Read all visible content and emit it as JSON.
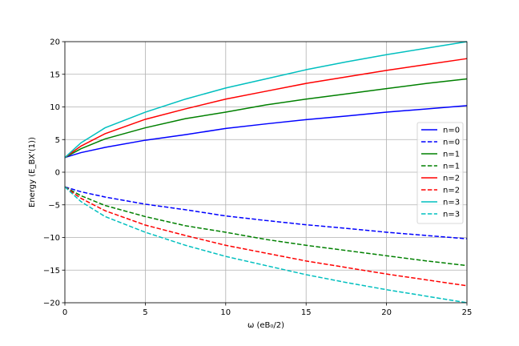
{
  "chart_data": {
    "type": "line",
    "title": "",
    "xlabel": "ω (eB₀/2)",
    "ylabel": "Energy (E_BX'(1))",
    "xlim": [
      0,
      25
    ],
    "ylim": [
      -20,
      20
    ],
    "xticks": [
      0,
      5,
      10,
      15,
      20,
      25
    ],
    "yticks": [
      -20,
      -15,
      -10,
      -5,
      0,
      5,
      10,
      15,
      20
    ],
    "grid": true,
    "legend_position": "right",
    "x": [
      0,
      1,
      2.5,
      5,
      7.5,
      10,
      12.5,
      15,
      17.5,
      20,
      22.5,
      25
    ],
    "series": [
      {
        "name": "n=0",
        "color": "#0000ff",
        "style": "solid",
        "values": [
          2.25,
          3.0,
          3.8,
          4.9,
          5.75,
          6.7,
          7.4,
          8.05,
          8.6,
          9.2,
          9.7,
          10.2
        ]
      },
      {
        "name": "n=0",
        "color": "#0000ff",
        "style": "dashed",
        "values": [
          -2.25,
          -3.0,
          -3.8,
          -4.9,
          -5.75,
          -6.7,
          -7.4,
          -8.05,
          -8.6,
          -9.2,
          -9.7,
          -10.2
        ]
      },
      {
        "name": "n=1",
        "color": "#008000",
        "style": "solid",
        "values": [
          2.25,
          3.6,
          5.1,
          6.8,
          8.2,
          9.2,
          10.3,
          11.2,
          12.0,
          12.8,
          13.6,
          14.3
        ]
      },
      {
        "name": "n=1",
        "color": "#008000",
        "style": "dashed",
        "values": [
          -2.25,
          -3.6,
          -5.1,
          -6.8,
          -8.2,
          -9.2,
          -10.3,
          -11.2,
          -12.0,
          -12.8,
          -13.6,
          -14.3
        ]
      },
      {
        "name": "n=2",
        "color": "#ff0000",
        "style": "solid",
        "values": [
          2.25,
          4.0,
          5.9,
          8.1,
          9.7,
          11.2,
          12.4,
          13.6,
          14.6,
          15.6,
          16.5,
          17.4
        ]
      },
      {
        "name": "n=2",
        "color": "#ff0000",
        "style": "dashed",
        "values": [
          -2.25,
          -4.0,
          -5.9,
          -8.1,
          -9.7,
          -11.2,
          -12.4,
          -13.6,
          -14.6,
          -15.6,
          -16.5,
          -17.4
        ]
      },
      {
        "name": "n=3",
        "color": "#00bfbf",
        "style": "solid",
        "values": [
          2.25,
          4.5,
          6.8,
          9.2,
          11.2,
          12.9,
          14.3,
          15.7,
          16.9,
          18.0,
          19.0,
          20.0
        ]
      },
      {
        "name": "n=3",
        "color": "#00bfbf",
        "style": "dashed",
        "values": [
          -2.25,
          -4.5,
          -6.8,
          -9.2,
          -11.2,
          -12.9,
          -14.3,
          -15.7,
          -16.9,
          -18.0,
          -19.0,
          -20.0
        ]
      }
    ]
  }
}
